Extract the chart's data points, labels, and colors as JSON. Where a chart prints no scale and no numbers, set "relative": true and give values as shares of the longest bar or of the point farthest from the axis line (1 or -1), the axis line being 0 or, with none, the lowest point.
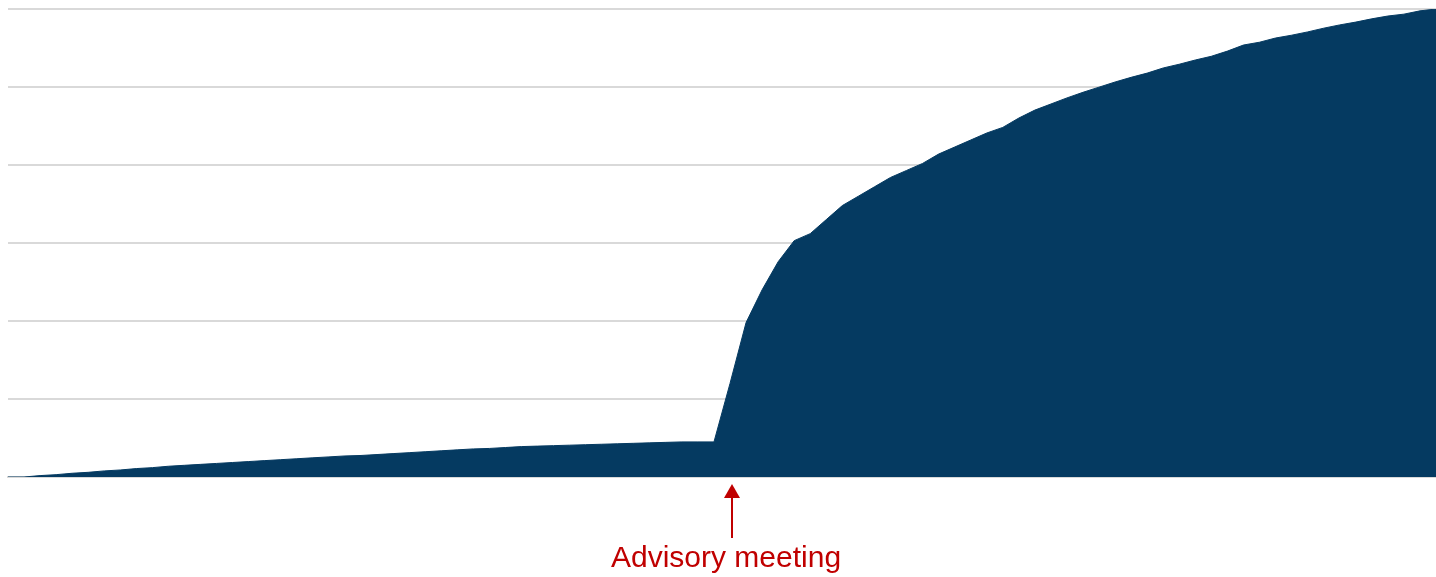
{
  "chart_data": {
    "type": "area",
    "relative": true,
    "grid": "y",
    "color": "#053a61",
    "annotations": [
      "Advisory meeting"
    ],
    "categories": [
      null,
      null,
      null,
      null,
      null,
      null,
      null,
      null,
      null,
      null,
      null,
      null,
      null,
      null,
      null,
      null,
      null,
      null,
      null,
      null,
      null,
      null,
      null,
      null,
      null,
      null,
      null,
      null,
      null,
      null,
      null,
      null,
      null,
      null,
      null,
      null,
      null,
      null,
      null,
      null,
      null,
      null,
      null,
      null,
      null,
      null,
      null,
      null,
      null,
      null,
      null,
      null,
      null,
      null,
      null,
      null,
      null,
      null,
      null,
      null,
      null,
      null,
      null,
      null,
      null,
      null,
      null,
      null,
      null,
      null,
      null,
      null,
      null,
      null,
      null,
      null,
      null,
      null,
      null,
      null,
      null,
      null,
      null,
      null,
      null,
      null,
      null,
      null,
      null,
      null
    ],
    "values": [
      0,
      0,
      0.003,
      0.005,
      0.008,
      0.01,
      0.013,
      0.015,
      0.018,
      0.02,
      0.023,
      0.025,
      0.027,
      0.029,
      0.031,
      0.033,
      0.035,
      0.037,
      0.039,
      0.041,
      0.043,
      0.045,
      0.046,
      0.048,
      0.05,
      0.052,
      0.054,
      0.056,
      0.058,
      0.06,
      0.061,
      0.063,
      0.065,
      0.066,
      0.067,
      0.068,
      0.069,
      0.07,
      0.071,
      0.072,
      0.073,
      0.074,
      0.075,
      0.075,
      0.075,
      0.2,
      0.33,
      0.4,
      0.46,
      0.505,
      0.52,
      0.55,
      0.58,
      0.6,
      0.62,
      0.64,
      0.655,
      0.67,
      0.69,
      0.705,
      0.72,
      0.735,
      0.747,
      0.767,
      0.784,
      0.797,
      0.81,
      0.822,
      0.833,
      0.844,
      0.854,
      0.863,
      0.874,
      0.882,
      0.891,
      0.899,
      0.91,
      0.923,
      0.929,
      0.938,
      0.944,
      0.951,
      0.959,
      0.966,
      0.972,
      0.979,
      0.985,
      0.989,
      0.996,
      1
    ]
  }
}
